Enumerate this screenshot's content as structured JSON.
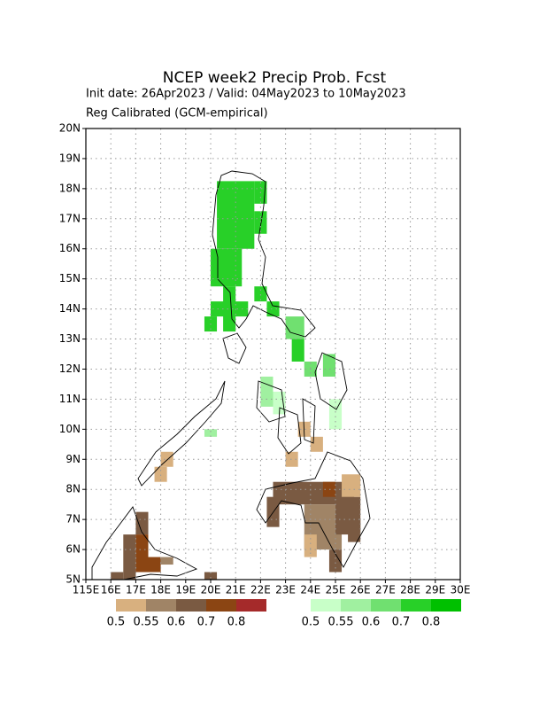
{
  "chart_data": {
    "type": "map",
    "title": "NCEP week2 Precip Prob. Fcst",
    "subtitle": "Init date: 26Apr2023 / Valid: 04May2023 to 10May2023",
    "note": "Reg Calibrated (GCM-empirical)",
    "xlim": [
      115,
      130
    ],
    "ylim": [
      5,
      20
    ],
    "xticks": [
      {
        "value": 115,
        "label": "115E"
      },
      {
        "value": 116,
        "label": "16E"
      },
      {
        "value": 117,
        "label": "17E"
      },
      {
        "value": 118,
        "label": "18E"
      },
      {
        "value": 119,
        "label": "19E"
      },
      {
        "value": 120,
        "label": "20E"
      },
      {
        "value": 121,
        "label": "21E"
      },
      {
        "value": 122,
        "label": "22E"
      },
      {
        "value": 123,
        "label": "23E"
      },
      {
        "value": 124,
        "label": "24E"
      },
      {
        "value": 125,
        "label": "25E"
      },
      {
        "value": 126,
        "label": "26E"
      },
      {
        "value": 127,
        "label": "27E"
      },
      {
        "value": 128,
        "label": "28E"
      },
      {
        "value": 129,
        "label": "29E"
      },
      {
        "value": 130,
        "label": "30E"
      }
    ],
    "yticks": [
      {
        "value": 5,
        "label": "5N"
      },
      {
        "value": 6,
        "label": "6N"
      },
      {
        "value": 7,
        "label": "7N"
      },
      {
        "value": 8,
        "label": "8N"
      },
      {
        "value": 9,
        "label": "9N"
      },
      {
        "value": 10,
        "label": "10N"
      },
      {
        "value": 11,
        "label": "11N"
      },
      {
        "value": 12,
        "label": "12N"
      },
      {
        "value": 13,
        "label": "13N"
      },
      {
        "value": 14,
        "label": "14N"
      },
      {
        "value": 15,
        "label": "15N"
      },
      {
        "value": 16,
        "label": "16N"
      },
      {
        "value": 17,
        "label": "17N"
      },
      {
        "value": 18,
        "label": "18N"
      },
      {
        "value": 19,
        "label": "19N"
      },
      {
        "value": 20,
        "label": "20N"
      }
    ],
    "grid": true,
    "legends": [
      {
        "colors": [
          "#d8b07f",
          "#a08466",
          "#7a5a42",
          "#8b4513",
          "#a52a2a"
        ],
        "values": [
          0.5,
          0.55,
          0.6,
          0.7,
          0.8
        ]
      },
      {
        "colors": [
          "#c8ffc8",
          "#a0f0a0",
          "#70e070",
          "#28d028",
          "#00c000"
        ],
        "values": [
          0.5,
          0.55,
          0.6,
          0.7,
          0.8
        ]
      }
    ],
    "below_cells": [
      [
        122.5,
        7.5,
        125.75,
        8.25,
        0.6
      ],
      [
        124.5,
        7.75,
        125.0,
        8.25,
        0.7
      ],
      [
        123.75,
        6.0,
        125.25,
        7.5,
        0.55
      ],
      [
        123.75,
        5.75,
        124.25,
        6.5,
        0.5
      ],
      [
        125.0,
        6.5,
        126.0,
        7.75,
        0.6
      ],
      [
        125.5,
        6.25,
        126.0,
        7.0,
        0.6
      ],
      [
        124.75,
        5.25,
        125.25,
        6.0,
        0.6
      ],
      [
        125.25,
        7.75,
        126.0,
        8.5,
        0.5
      ],
      [
        122.25,
        6.75,
        122.75,
        7.75,
        0.6
      ],
      [
        123.5,
        9.75,
        124.0,
        10.25,
        0.5
      ],
      [
        123.0,
        8.75,
        123.5,
        9.25,
        0.5
      ],
      [
        124.0,
        9.25,
        124.5,
        9.75,
        0.5
      ],
      [
        118.0,
        8.75,
        118.5,
        9.25,
        0.5
      ],
      [
        117.75,
        8.25,
        118.25,
        8.75,
        0.5
      ],
      [
        117.0,
        6.5,
        117.5,
        7.25,
        0.6
      ],
      [
        116.5,
        5.0,
        117.0,
        6.5,
        0.6
      ],
      [
        117.0,
        5.25,
        117.5,
        6.5,
        0.7
      ],
      [
        117.5,
        5.25,
        118.0,
        5.75,
        0.7
      ],
      [
        118.0,
        5.5,
        118.5,
        5.75,
        0.55
      ],
      [
        116.0,
        5.0,
        116.5,
        5.25,
        0.6
      ],
      [
        119.75,
        5.0,
        120.25,
        5.25,
        0.6
      ]
    ],
    "above_cells": [
      [
        120.25,
        16.0,
        121.75,
        18.25,
        0.7
      ],
      [
        121.75,
        17.5,
        122.25,
        18.25,
        0.7
      ],
      [
        121.75,
        16.5,
        122.25,
        17.25,
        0.7
      ],
      [
        120.0,
        14.75,
        121.25,
        16.0,
        0.7
      ],
      [
        120.5,
        13.25,
        121.0,
        14.75,
        0.7
      ],
      [
        119.75,
        13.25,
        120.25,
        13.75,
        0.7
      ],
      [
        120.0,
        13.75,
        121.5,
        14.25,
        0.7
      ],
      [
        121.75,
        14.25,
        122.25,
        14.75,
        0.7
      ],
      [
        122.25,
        13.75,
        122.75,
        14.25,
        0.7
      ],
      [
        123.0,
        13.0,
        123.75,
        13.75,
        0.6
      ],
      [
        123.25,
        12.25,
        123.75,
        13.0,
        0.7
      ],
      [
        123.75,
        11.75,
        124.25,
        12.25,
        0.6
      ],
      [
        124.5,
        11.75,
        125.0,
        12.5,
        0.6
      ],
      [
        122.0,
        10.75,
        122.5,
        11.75,
        0.55
      ],
      [
        122.5,
        10.5,
        123.0,
        11.25,
        0.5
      ],
      [
        124.75,
        10.0,
        125.25,
        11.0,
        0.5
      ],
      [
        119.75,
        9.75,
        120.25,
        10.0,
        0.55
      ]
    ]
  }
}
